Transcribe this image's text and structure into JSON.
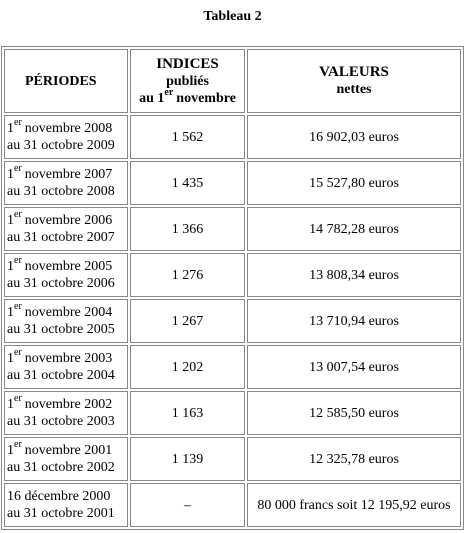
{
  "header": {
    "title": "Tableau 2"
  },
  "table": {
    "columns": [
      {
        "lines": [
          "PÉRIODES"
        ]
      },
      {
        "lines": [
          "INDICES",
          "publiés"
        ],
        "last": {
          "text": "au 1",
          "sup": "er",
          "rest": "novembre"
        }
      },
      {
        "lines": [
          "VALEURS",
          "nettes"
        ]
      }
    ],
    "rows": [
      [
        {
          "num": "1",
          "sup": "er",
          "start": "novembre 2008",
          "end": "au 31 octobre 2009"
        },
        "1 562",
        "16 902,03 euros"
      ],
      [
        {
          "num": "1",
          "sup": "er",
          "start": "novembre 2007",
          "end": "au 31 octobre 2008"
        },
        "1 435",
        "15 527,80 euros"
      ],
      [
        {
          "num": "1",
          "sup": "er",
          "start": "novembre 2006",
          "end": "au 31 octobre 2007"
        },
        "1 366",
        "14 782,28 euros"
      ],
      [
        {
          "num": "1",
          "sup": "er",
          "start": "novembre 2005",
          "end": "au 31 octobre 2006"
        },
        "1 276",
        "13 808,34 euros"
      ],
      [
        {
          "num": "1",
          "sup": "er",
          "start": "novembre 2004",
          "end": "au 31 octobre 2005"
        },
        "1 267",
        "13 710,94 euros"
      ],
      [
        {
          "num": "1",
          "sup": "er",
          "start": "novembre 2003",
          "end": "au 31 octobre 2004"
        },
        "1 202",
        "13 007,54 euros"
      ],
      [
        {
          "num": "1",
          "sup": "er",
          "start": "novembre 2002",
          "end": "au 31 octobre 2003"
        },
        "1 163",
        "12 585,50 euros"
      ],
      [
        {
          "num": "1",
          "sup": "er",
          "start": "novembre 2001",
          "end": "au 31 octobre 2002"
        },
        "1 139",
        "12 325,78 euros"
      ],
      [
        {
          "start": "16 décembre 2000",
          "end": "au 31 octobre 2001"
        },
        "–",
        "80 000 francs soit 12 195,92 euros"
      ]
    ]
  }
}
